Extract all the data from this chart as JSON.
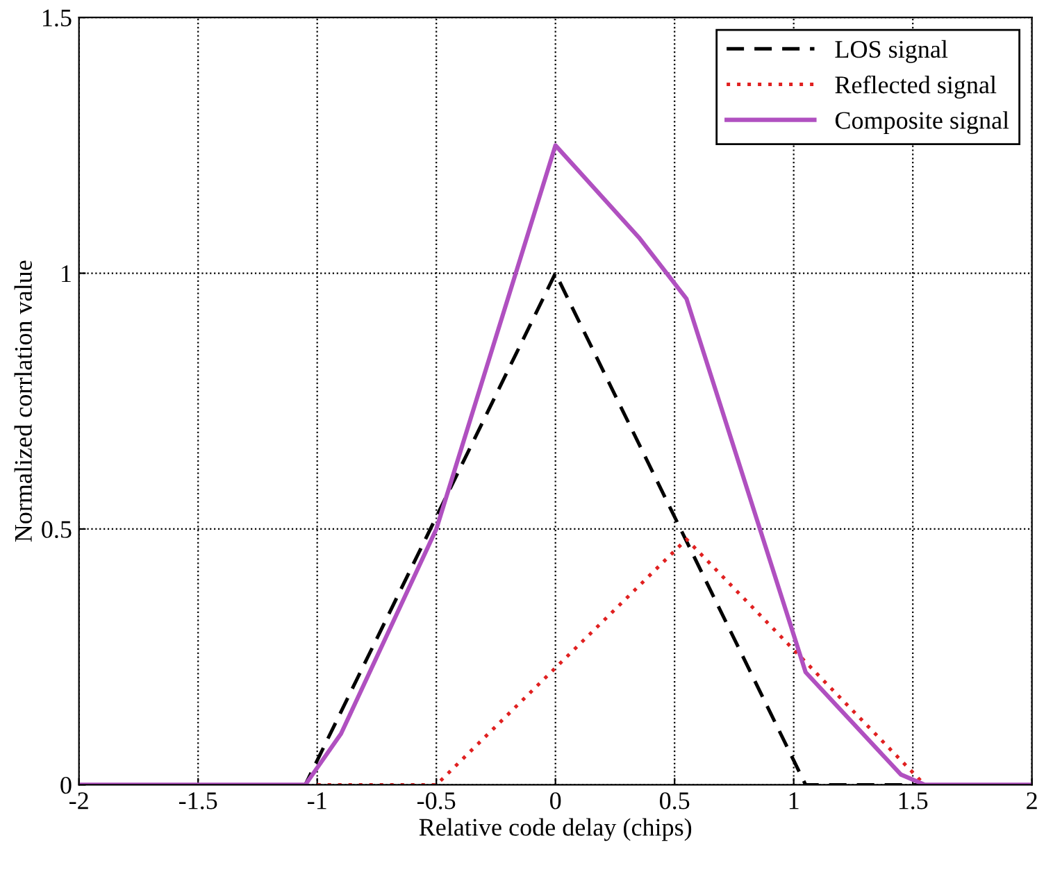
{
  "chart_data": {
    "type": "line",
    "xlabel": "Relative code delay (chips)",
    "ylabel": "Normalized corrlation value",
    "xlim": [
      -2,
      2
    ],
    "ylim": [
      0,
      1.5
    ],
    "xticks": [
      -2,
      -1.5,
      -1,
      -0.5,
      0,
      0.5,
      1,
      1.5,
      2
    ],
    "yticks": [
      0,
      0.5,
      1,
      1.5
    ],
    "grid": true,
    "legend": "top right",
    "marker": "none",
    "series": [
      {
        "name": "LOS signal",
        "color": "#000000",
        "line_style": "dashed",
        "x": [
          -2,
          -1.05,
          0,
          1.05,
          2
        ],
        "values": [
          0,
          0,
          1,
          0,
          0
        ]
      },
      {
        "name": "Reflected signal",
        "color": "#e02020",
        "line_style": "dotted",
        "x": [
          -1,
          -0.5,
          0.55,
          1.05,
          1.55,
          2
        ],
        "values": [
          0,
          0,
          0.48,
          0.24,
          0,
          0
        ]
      },
      {
        "name": "Composite signal",
        "color": "#b050c0",
        "line_style": "solid",
        "x": [
          -2,
          -1.05,
          -0.9,
          -0.5,
          0,
          0.35,
          0.55,
          1.05,
          1.45,
          1.55,
          2
        ],
        "values": [
          0,
          0,
          0.1,
          0.5,
          1.25,
          1.07,
          0.95,
          0.22,
          0.02,
          0,
          0
        ]
      }
    ]
  }
}
